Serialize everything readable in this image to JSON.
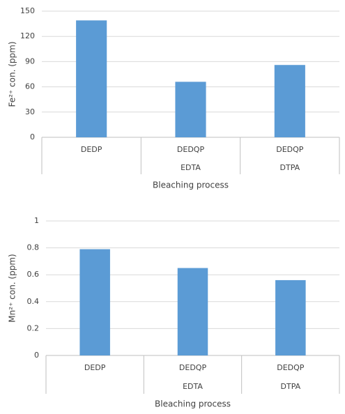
{
  "chart_data": [
    {
      "type": "bar",
      "y_label": "Fe²⁺ con. (ppm)",
      "x_label": "Bleaching process",
      "categories": [
        "DEDP",
        "DEDQP",
        "DEDQP"
      ],
      "subcategories": [
        null,
        "EDTA",
        "DTPA"
      ],
      "values": [
        139,
        66,
        86
      ],
      "color": "#5b9bd5",
      "ylim": [
        0,
        150
      ],
      "yticks": [
        0,
        30,
        60,
        90,
        120,
        150
      ],
      "grid": true
    },
    {
      "type": "bar",
      "y_label": "Mn²⁺ con. (ppm)",
      "x_label": "Bleaching process",
      "categories": [
        "DEDP",
        "DEDQP",
        "DEDQP"
      ],
      "subcategories": [
        null,
        "EDTA",
        "DTPA"
      ],
      "values": [
        0.79,
        0.65,
        0.56
      ],
      "color": "#5b9bd5",
      "ylim": [
        0,
        1
      ],
      "yticks": [
        0,
        0.2,
        0.4,
        0.6,
        0.8,
        1
      ],
      "grid": true
    }
  ]
}
